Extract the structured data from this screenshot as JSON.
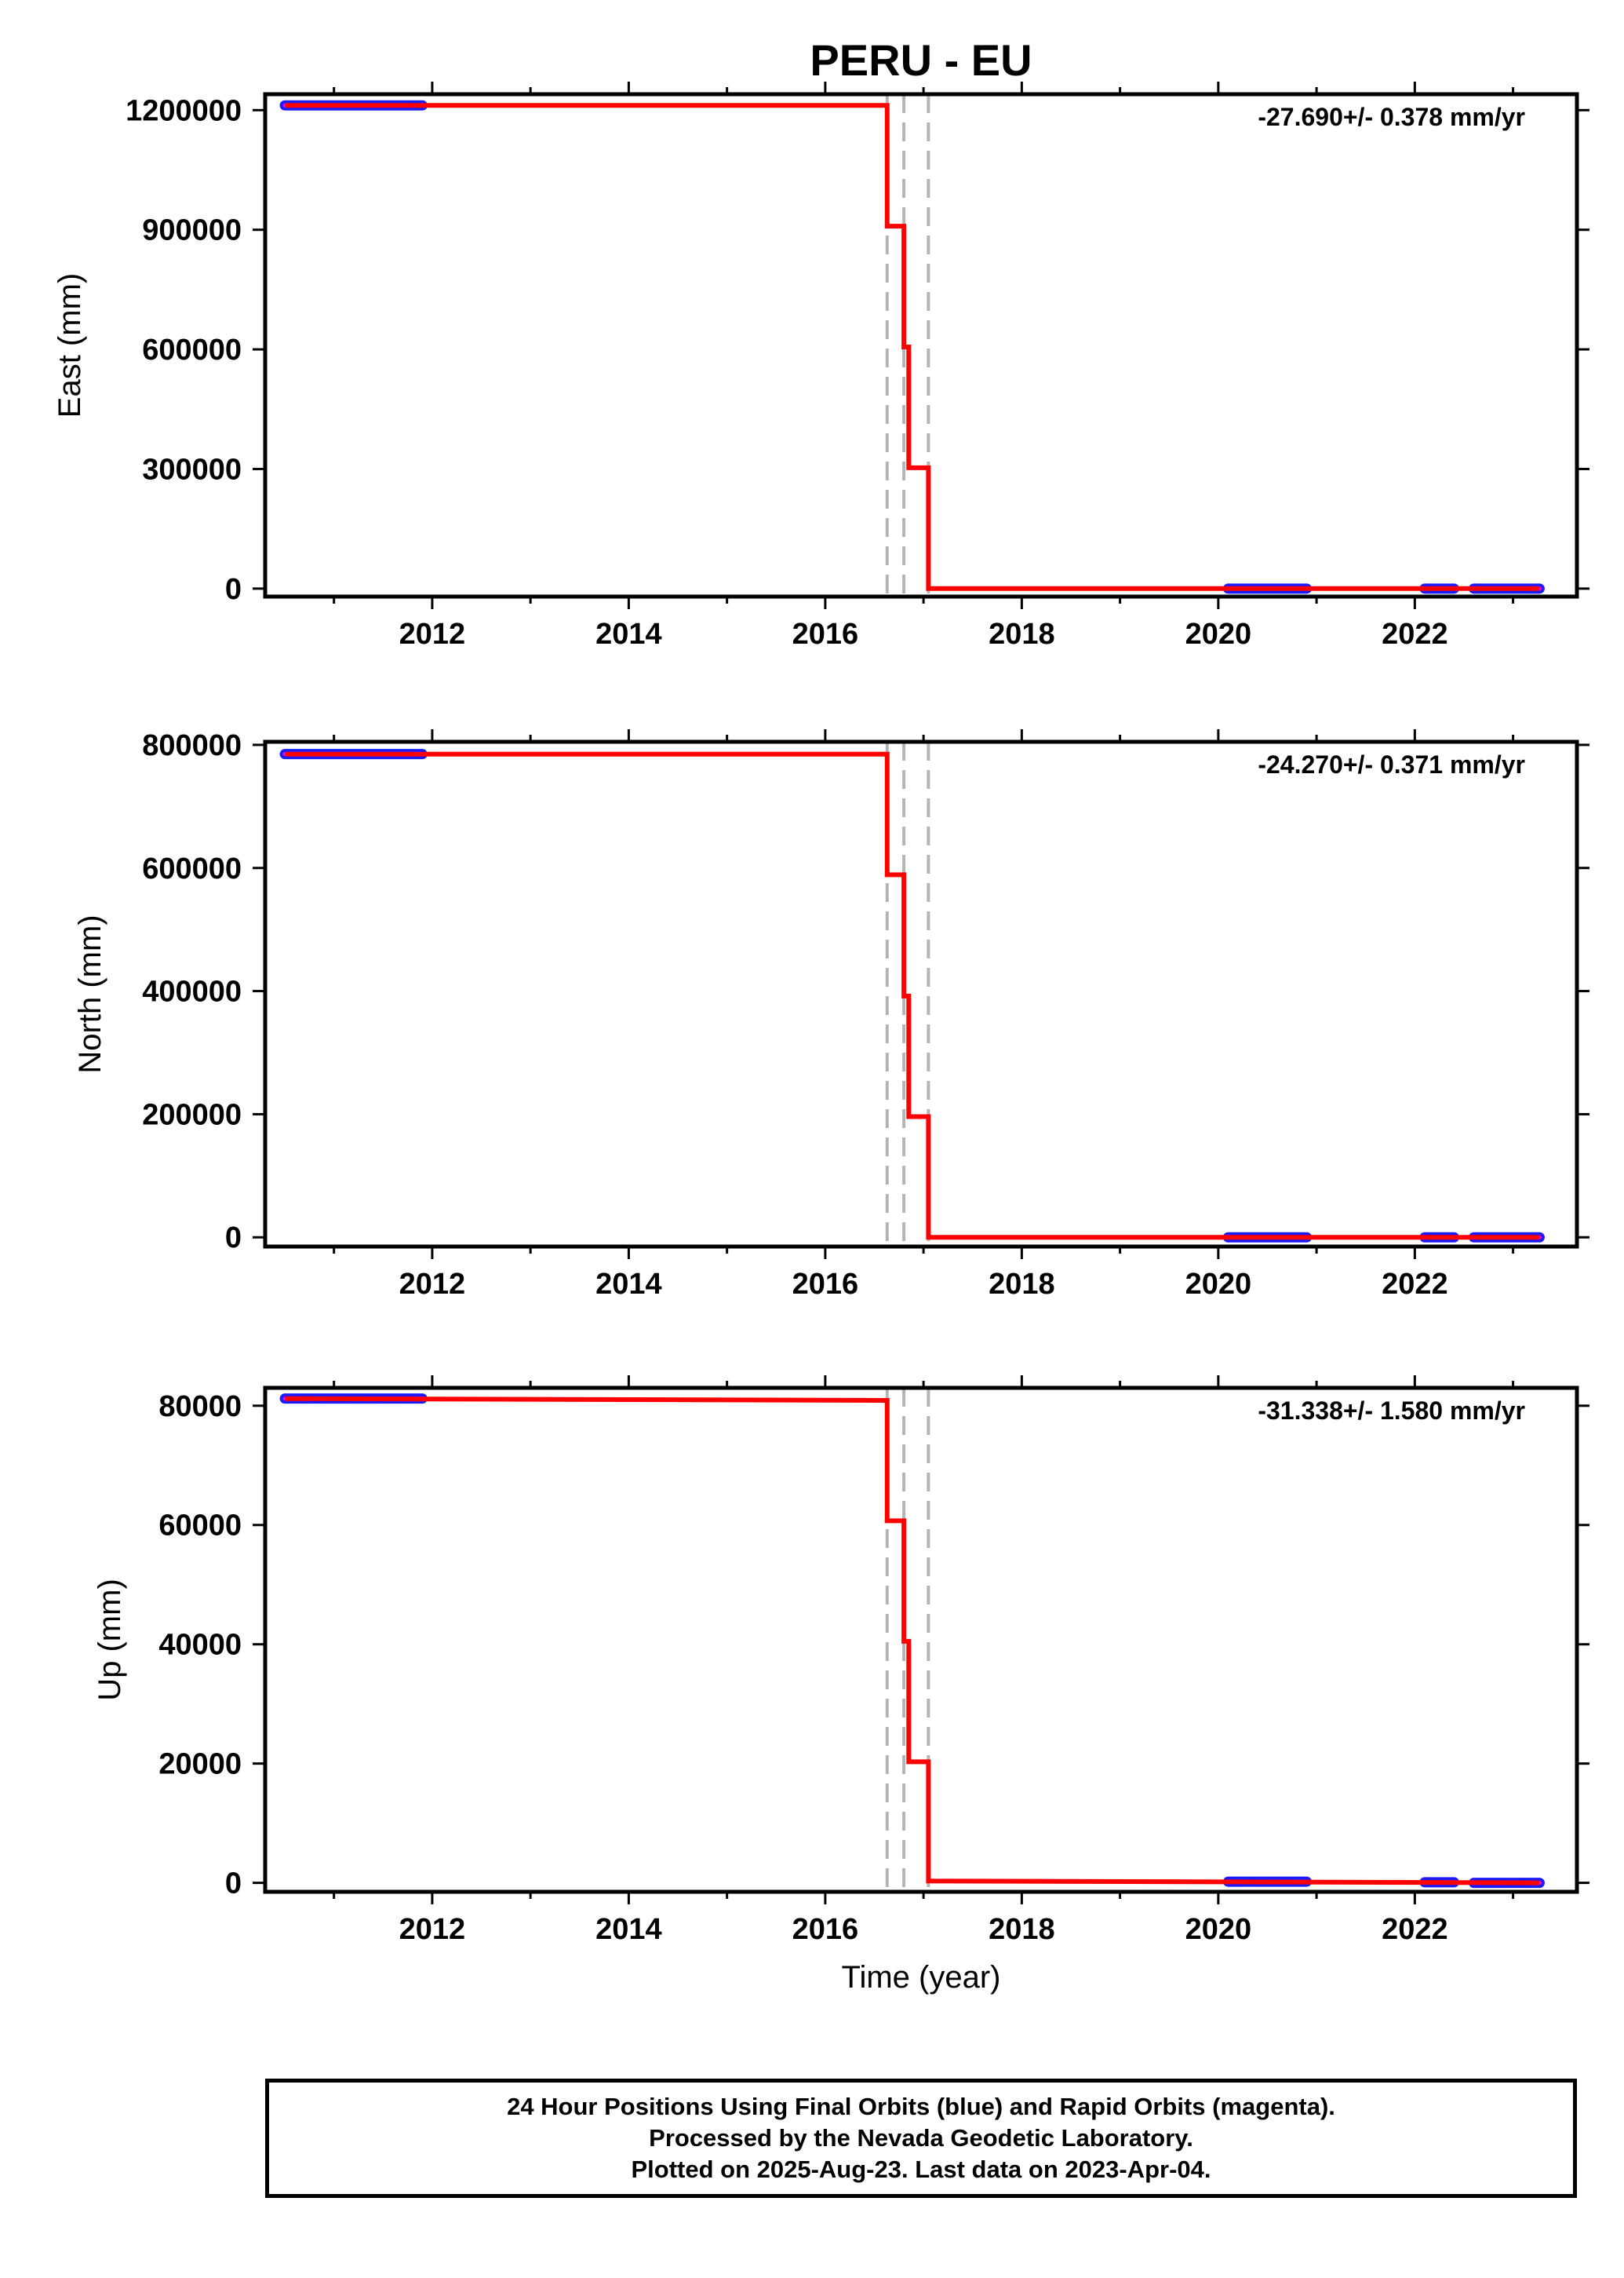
{
  "title": "PERU - EU",
  "colors": {
    "fit_line": "#ff0000",
    "final_orbits": "#1a1aff",
    "rapid_orbits": "#ff00ff",
    "event_lines": "#b4b4b4",
    "frame": "#000000"
  },
  "footer": {
    "line1": "24 Hour Positions Using Final Orbits (blue) and Rapid Orbits (magenta).",
    "line2": "Processed by the Nevada Geodetic Laboratory.",
    "line3": "Plotted on 2025-Aug-23. Last data on 2023-Apr-04."
  },
  "chart_data": [
    {
      "type": "line",
      "ylabel": "East (mm)",
      "xlabel": "",
      "rate_label": "-27.690+/- 0.378 mm/yr",
      "xlim": [
        2010.3,
        2023.65
      ],
      "ylim": [
        -20000,
        1240000
      ],
      "xticks": [
        2012,
        2014,
        2016,
        2018,
        2020,
        2022
      ],
      "yticks": [
        0,
        300000,
        600000,
        900000,
        1200000
      ],
      "event_lines_x": [
        2016.63,
        2016.8,
        2017.05
      ],
      "fit_line": {
        "x": [
          2010.5,
          2016.63,
          2016.63,
          2016.8,
          2016.8,
          2016.85,
          2016.85,
          2017.05,
          2017.05,
          2023.27
        ],
        "y": [
          1212000,
          1212000,
          909000,
          909000,
          606000,
          606000,
          303000,
          303000,
          0,
          0
        ]
      },
      "data_segments": [
        {
          "x_start": 2010.5,
          "x_end": 2011.9,
          "y": 1212000
        },
        {
          "x_start": 2020.1,
          "x_end": 2020.9,
          "y": 0
        },
        {
          "x_start": 2022.1,
          "x_end": 2022.4,
          "y": 0
        },
        {
          "x_start": 2022.6,
          "x_end": 2023.27,
          "y": 0
        }
      ]
    },
    {
      "type": "line",
      "ylabel": "North (mm)",
      "xlabel": "",
      "rate_label": "-24.270+/- 0.371 mm/yr",
      "xlim": [
        2010.3,
        2023.65
      ],
      "ylim": [
        -15000,
        805000
      ],
      "xticks": [
        2012,
        2014,
        2016,
        2018,
        2020,
        2022
      ],
      "yticks": [
        0,
        200000,
        400000,
        600000,
        800000
      ],
      "event_lines_x": [
        2016.63,
        2016.8,
        2017.05
      ],
      "fit_line": {
        "x": [
          2010.5,
          2016.63,
          2016.63,
          2016.8,
          2016.8,
          2016.85,
          2016.85,
          2017.05,
          2017.05,
          2023.27
        ],
        "y": [
          785000,
          785000,
          589000,
          589000,
          392000,
          392000,
          196000,
          196000,
          0,
          0
        ]
      },
      "data_segments": [
        {
          "x_start": 2010.5,
          "x_end": 2011.9,
          "y": 785000
        },
        {
          "x_start": 2020.1,
          "x_end": 2020.9,
          "y": 0
        },
        {
          "x_start": 2022.1,
          "x_end": 2022.4,
          "y": 0
        },
        {
          "x_start": 2022.6,
          "x_end": 2023.27,
          "y": 0
        }
      ]
    },
    {
      "type": "line",
      "ylabel": "Up (mm)",
      "xlabel": "Time (year)",
      "rate_label": "-31.338+/- 1.580 mm/yr",
      "xlim": [
        2010.3,
        2023.65
      ],
      "ylim": [
        -1500,
        83000
      ],
      "xticks": [
        2012,
        2014,
        2016,
        2018,
        2020,
        2022
      ],
      "yticks": [
        0,
        20000,
        40000,
        60000,
        80000
      ],
      "event_lines_x": [
        2016.63,
        2016.8,
        2017.05
      ],
      "fit_line": {
        "x": [
          2010.5,
          2016.63,
          2016.63,
          2016.8,
          2016.8,
          2016.85,
          2016.85,
          2017.05,
          2017.05,
          2023.27
        ],
        "y": [
          81200,
          80900,
          60700,
          60700,
          40500,
          40500,
          20300,
          20300,
          300,
          0
        ]
      },
      "data_segments": [
        {
          "x_start": 2010.5,
          "x_end": 2011.9,
          "y": 81200
        },
        {
          "x_start": 2020.1,
          "x_end": 2020.9,
          "y": 200
        },
        {
          "x_start": 2022.1,
          "x_end": 2022.4,
          "y": 100
        },
        {
          "x_start": 2022.6,
          "x_end": 2023.27,
          "y": 0
        }
      ]
    }
  ]
}
